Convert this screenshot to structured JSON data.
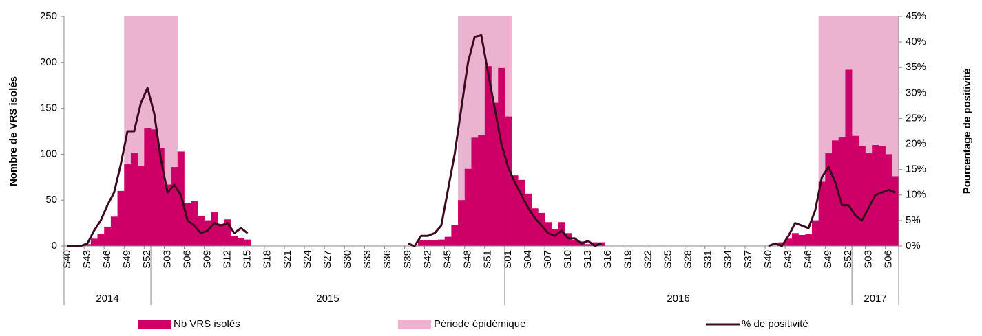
{
  "chart_data": {
    "type": "bar",
    "categories": [
      "S40",
      null,
      null,
      "S43",
      null,
      null,
      "S46",
      null,
      null,
      "S49",
      null,
      null,
      "S52",
      null,
      null,
      "S03",
      null,
      null,
      "S06",
      null,
      null,
      "S09",
      null,
      null,
      "S12",
      null,
      null,
      "S15",
      null,
      null,
      "S18",
      null,
      null,
      "S21",
      null,
      null,
      "S24",
      null,
      null,
      "S27",
      null,
      null,
      "S30",
      null,
      null,
      "S33",
      null,
      null,
      "S36",
      null,
      null,
      "S39",
      null,
      null,
      "S42",
      null,
      null,
      "S45",
      null,
      null,
      "S48",
      null,
      null,
      "S51",
      null,
      null,
      "S01",
      null,
      null,
      "S04",
      null,
      null,
      "S07",
      null,
      null,
      "S10",
      null,
      null,
      "S13",
      null,
      null,
      "S16",
      null,
      null,
      "S19",
      null,
      null,
      "S22",
      null,
      null,
      "S25",
      null,
      null,
      "S28",
      null,
      null,
      "S31",
      null,
      null,
      "S34",
      null,
      null,
      "S37",
      null,
      null,
      "S40",
      null,
      null,
      "S43",
      null,
      null,
      "S46",
      null,
      null,
      "S49",
      null,
      null,
      "S52",
      null,
      null,
      "S03",
      null,
      null,
      "S06",
      null
    ],
    "years": [
      "2014",
      "2015",
      "2016",
      "2017"
    ],
    "ylabel": "Nombre de VRS isolés",
    "y2label": "Pourcentage de positivité",
    "ylim": [
      0,
      250
    ],
    "yticks": [
      0,
      50,
      100,
      150,
      200,
      250
    ],
    "y2lim": [
      0,
      45
    ],
    "y2ticks": [
      {
        "value": 0,
        "label": "0%"
      },
      {
        "value": 5,
        "label": "5%"
      },
      {
        "value": 10,
        "label": "10%"
      },
      {
        "value": 15,
        "label": "15%"
      },
      {
        "value": 20,
        "label": "20%"
      },
      {
        "value": 25,
        "label": "25%"
      },
      {
        "value": 30,
        "label": "30%"
      },
      {
        "value": 35,
        "label": "35%"
      },
      {
        "value": 40,
        "label": "40%"
      },
      {
        "value": 45,
        "label": "45%"
      }
    ],
    "series": [
      {
        "name": "Période épidémique",
        "type": "bar",
        "color": "#ecb3d0",
        "values": [
          null,
          null,
          null,
          null,
          null,
          null,
          null,
          null,
          null,
          250,
          250,
          250,
          250,
          250,
          250,
          250,
          250,
          null,
          null,
          null,
          null,
          null,
          null,
          null,
          null,
          null,
          null,
          null,
          null,
          null,
          null,
          null,
          null,
          null,
          null,
          null,
          null,
          null,
          null,
          null,
          null,
          null,
          null,
          null,
          null,
          null,
          null,
          null,
          null,
          null,
          null,
          null,
          null,
          null,
          null,
          null,
          null,
          null,
          null,
          250,
          250,
          250,
          250,
          250,
          250,
          250,
          250,
          null,
          null,
          null,
          null,
          null,
          null,
          null,
          null,
          null,
          null,
          null,
          null,
          null,
          null,
          null,
          null,
          null,
          null,
          null,
          null,
          null,
          null,
          null,
          null,
          null,
          null,
          null,
          null,
          null,
          null,
          null,
          null,
          null,
          null,
          null,
          null,
          null,
          null,
          null,
          null,
          null,
          null,
          null,
          null,
          null,
          null,
          250,
          250,
          250,
          250,
          250,
          250,
          250,
          250,
          250,
          250,
          250,
          250
        ]
      },
      {
        "name": "Nb VRS isolés",
        "type": "bar",
        "color": "#cc0066",
        "values": [
          0,
          0,
          0,
          2,
          8,
          13,
          21,
          32,
          60,
          89,
          101,
          87,
          128,
          127,
          107,
          67,
          86,
          103,
          47,
          49,
          33,
          28,
          37,
          24,
          29,
          11,
          9,
          7,
          null,
          null,
          null,
          null,
          null,
          null,
          null,
          null,
          null,
          null,
          null,
          null,
          null,
          null,
          null,
          null,
          null,
          null,
          null,
          null,
          null,
          null,
          null,
          null,
          null,
          6,
          6,
          6,
          7,
          10,
          23,
          50,
          84,
          118,
          121,
          196,
          156,
          194,
          141,
          77,
          72,
          57,
          41,
          36,
          26,
          18,
          26,
          14,
          6,
          5,
          2,
          4,
          4,
          null,
          null,
          null,
          null,
          null,
          null,
          null,
          null,
          null,
          null,
          null,
          null,
          null,
          null,
          null,
          null,
          null,
          null,
          null,
          null,
          null,
          null,
          null,
          null,
          null,
          null,
          4,
          8,
          14,
          12,
          13,
          28,
          70,
          101,
          115,
          119,
          192,
          120,
          109,
          101,
          110,
          109,
          100,
          76
        ]
      },
      {
        "name": "% de positivité",
        "type": "line",
        "axis": "y2",
        "color": "#3a0a1e",
        "values": [
          0,
          0,
          0,
          0.5,
          3,
          5,
          8,
          10.5,
          16,
          22.5,
          22.5,
          28,
          31,
          26,
          17,
          10.5,
          12,
          10,
          5,
          4,
          2.5,
          3,
          4.5,
          4,
          4.5,
          2.5,
          3.5,
          2.5,
          null,
          null,
          null,
          null,
          null,
          null,
          null,
          null,
          null,
          null,
          null,
          null,
          null,
          null,
          null,
          null,
          null,
          null,
          null,
          null,
          null,
          null,
          null,
          0.5,
          0,
          2,
          2,
          2.5,
          4,
          11,
          18,
          27,
          36,
          41,
          41.3,
          34,
          27,
          20,
          15.5,
          12.5,
          10,
          7.5,
          5.5,
          4,
          2.5,
          2,
          3,
          1.5,
          1.5,
          0.5,
          1,
          0,
          0.5,
          null,
          null,
          null,
          null,
          null,
          null,
          null,
          null,
          null,
          null,
          null,
          null,
          null,
          null,
          null,
          null,
          null,
          null,
          null,
          null,
          null,
          null,
          null,
          null,
          0,
          0.5,
          0,
          2,
          4.5,
          4,
          3.5,
          7,
          13.5,
          15.5,
          12.5,
          8,
          8,
          6,
          5,
          7.5,
          10,
          10.5,
          11,
          10.5
        ]
      }
    ]
  }
}
